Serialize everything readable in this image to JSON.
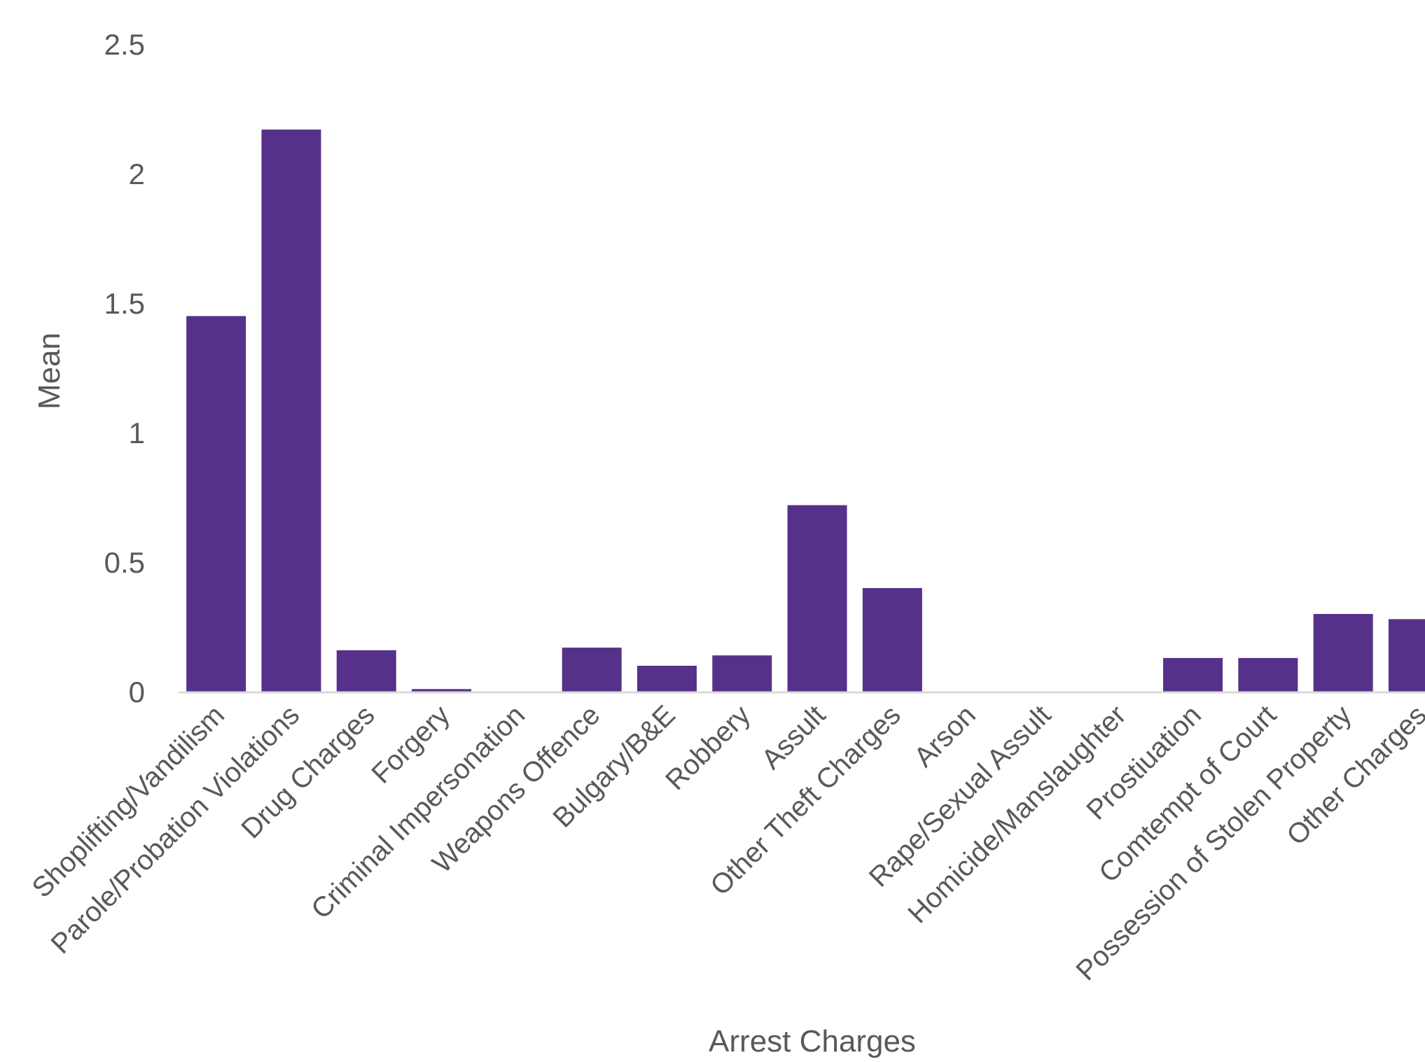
{
  "chart_data": {
    "type": "bar",
    "title": "",
    "xlabel": "Arrest Charges",
    "ylabel": "Mean",
    "ylim": [
      0,
      2.5
    ],
    "yticks": [
      "0",
      "0.5",
      "1",
      "1.5",
      "2",
      "2.5"
    ],
    "grid": false,
    "legend": "none",
    "bar_color": "#56318A",
    "axis_color": "#D9D9D9",
    "text_color": "#595959",
    "categories": [
      "Shoplifting/Vandilism",
      "Parole/Probation Violations",
      "Drug Charges",
      "Forgery",
      "Criminal Impersonation",
      "Weapons Offence",
      "Bulgary/B&E",
      "Robbery",
      "Assult",
      "Other Theft Charges",
      "Arson",
      "Rape/Sexual Assult",
      "Homicide/Manslaughter",
      "Prostiuation",
      "Comtempt of Court",
      "Possession of Stolen Property",
      "Other Charges"
    ],
    "values": [
      1.45,
      2.17,
      0.16,
      0.01,
      0,
      0.17,
      0.1,
      0.14,
      0.72,
      0.4,
      0,
      0,
      0,
      0.13,
      0.13,
      0.3,
      0.28
    ]
  }
}
